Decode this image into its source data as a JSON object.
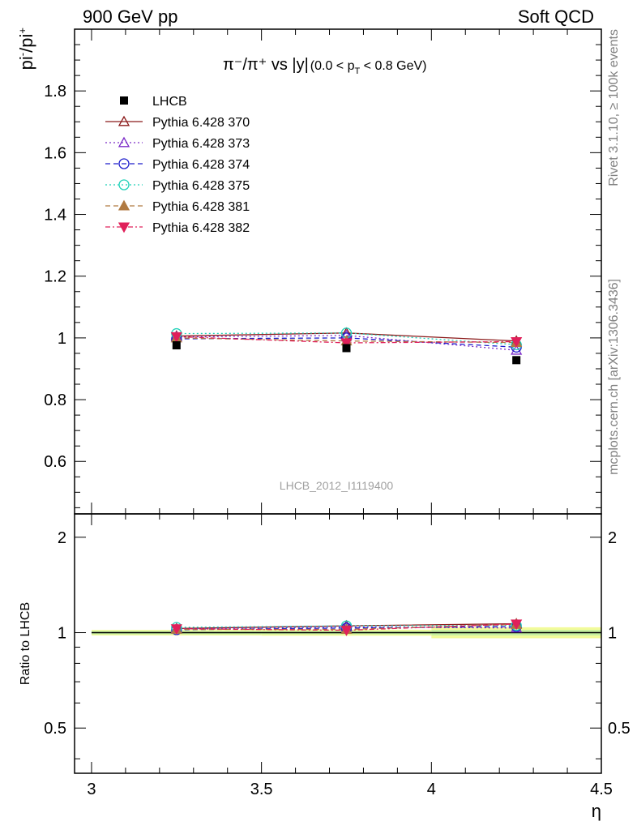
{
  "header": {
    "left": "900 GeV pp",
    "right": "Soft QCD"
  },
  "side_text": {
    "rivet": "Rivet 3.1.10, ≥ 100k events",
    "mcplots": "mcplots.cern.ch [arXiv:1306.3436]"
  },
  "watermark": "LHCB_2012_I1119400",
  "chart_data": {
    "type": "line",
    "title": {
      "main": "π⁻/π⁺ vs |y|",
      "cut_open": "(0.0 < p",
      "cut_sub": "T",
      "cut_close": " < 0.8 GeV)"
    },
    "ylabel": {
      "base": "pi",
      "sup1": "-",
      "mid": "/pi",
      "sup2": "+"
    },
    "xlabel": "η",
    "xlim": [
      2.95,
      4.5
    ],
    "ylim": [
      0.43,
      2.0
    ],
    "ratio_ylabel": "Ratio to LHCB",
    "ratio_ylim": [
      0.36,
      2.37
    ],
    "x_ticks": [
      "3",
      "3.5",
      "4",
      "4.5"
    ],
    "y_ticks": [
      "0.6",
      "0.8",
      "1",
      "1.2",
      "1.4",
      "1.6",
      "1.8"
    ],
    "ratio_y_ticks": [
      "0.5",
      "1",
      "2"
    ],
    "x": [
      3.25,
      3.75,
      4.25
    ],
    "data": {
      "name": "LHCB",
      "values": [
        0.976,
        0.967,
        0.928
      ]
    },
    "data_band_x": [
      [
        3.0,
        3.5
      ],
      [
        3.5,
        4.0
      ],
      [
        4.0,
        4.5
      ]
    ],
    "data_band_inner": [
      0.012,
      0.012,
      0.02
    ],
    "data_band_outer": [
      0.02,
      0.022,
      0.04
    ],
    "series": [
      {
        "name": "Pythia 6.428 370",
        "color": "#8b1a1a",
        "dash": "",
        "marker": "triangle-up-open",
        "values": [
          1.006,
          1.016,
          0.99
        ]
      },
      {
        "name": "Pythia 6.428 373",
        "color": "#7b2ac8",
        "dash": "2,3",
        "marker": "triangle-up-open",
        "values": [
          1.003,
          1.008,
          0.96
        ]
      },
      {
        "name": "Pythia 6.428 374",
        "color": "#1f1fcc",
        "dash": "6,4",
        "marker": "circle-open",
        "values": [
          0.997,
          1.0,
          0.97
        ]
      },
      {
        "name": "Pythia 6.428 375",
        "color": "#1fd1b8",
        "dash": "2,3",
        "marker": "circle-open",
        "values": [
          1.014,
          1.016,
          0.978
        ]
      },
      {
        "name": "Pythia 6.428 381",
        "color": "#b07a42",
        "dash": "6,4",
        "marker": "triangle-up-filled",
        "values": [
          1.0,
          0.99,
          0.985
        ]
      },
      {
        "name": "Pythia 6.428 382",
        "color": "#e0205a",
        "dash": "6,3,2,3",
        "marker": "triangle-down-filled",
        "values": [
          1.004,
          0.984,
          0.988
        ]
      }
    ]
  }
}
